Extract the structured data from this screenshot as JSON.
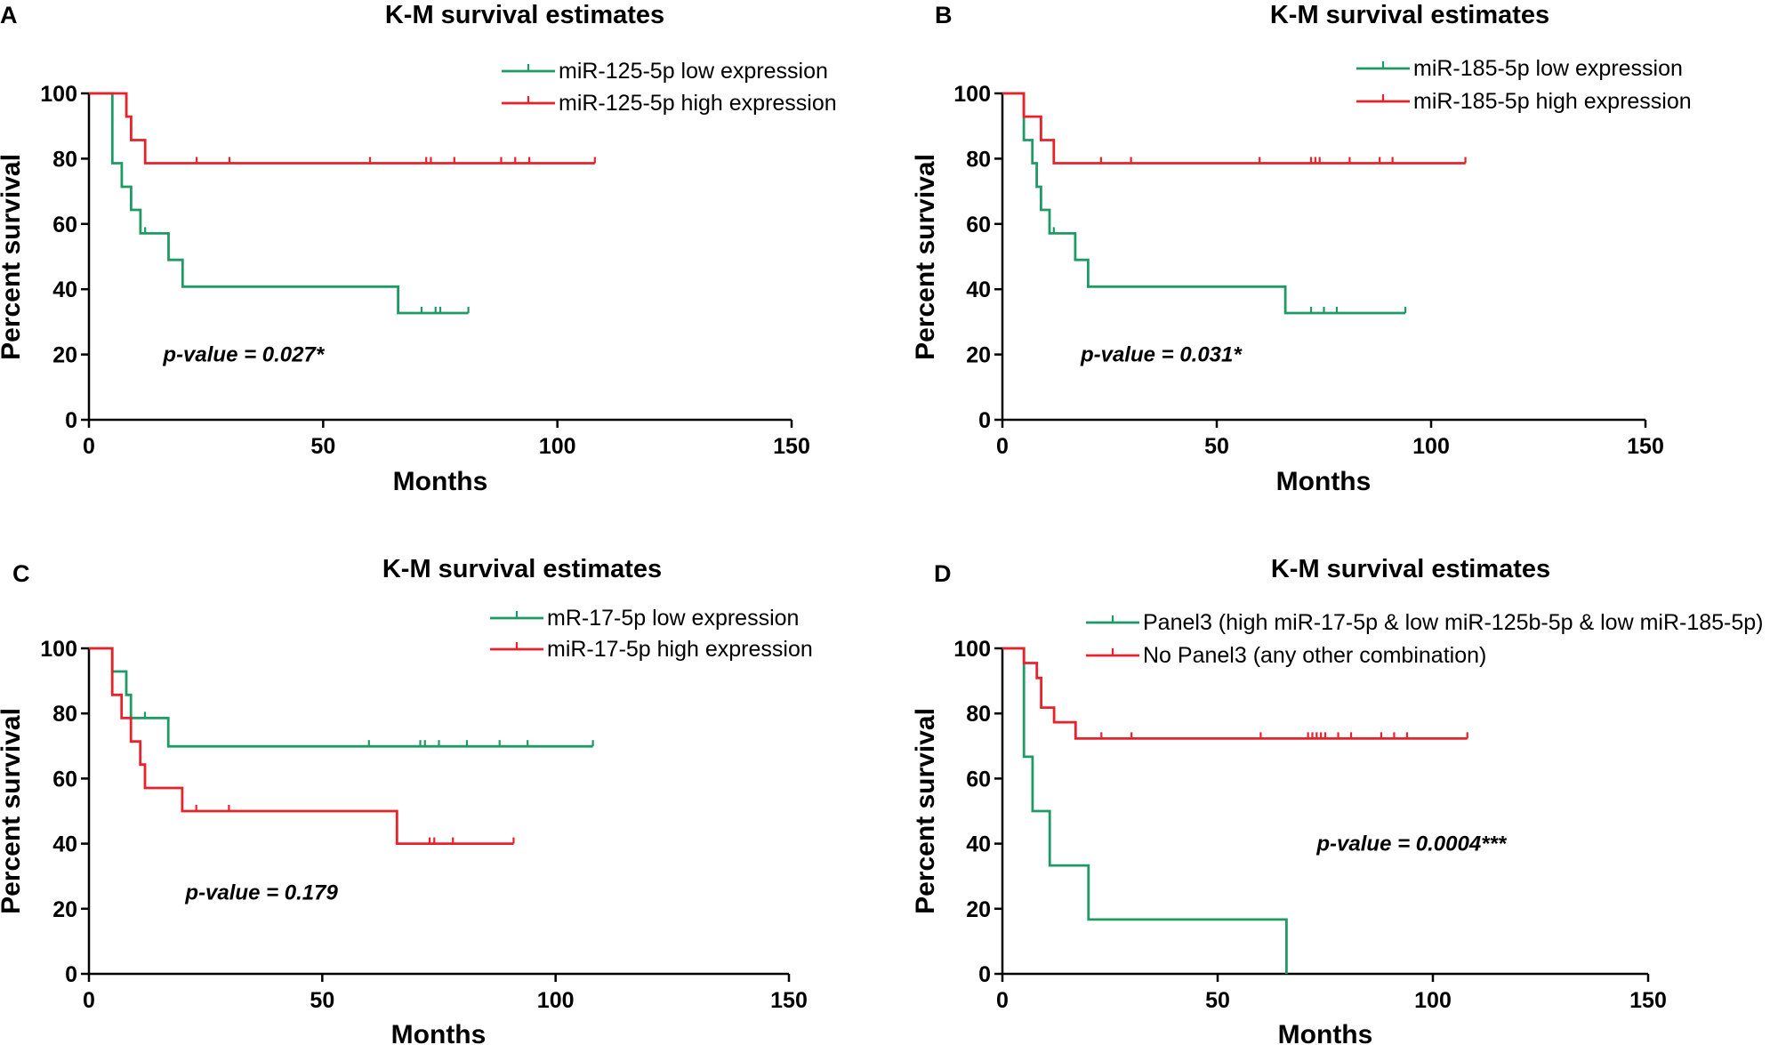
{
  "figure": {
    "background": "#ffffff"
  },
  "chart_data": [
    {
      "panel": "A",
      "type": "line",
      "subtype": "kaplan-meier",
      "title": "K-M survival estimates",
      "xlabel": "Months",
      "ylabel": "Percent survival",
      "xlim": [
        0,
        150
      ],
      "ylim": [
        0,
        100
      ],
      "xticks": [
        0,
        50,
        100,
        150
      ],
      "yticks": [
        0,
        20,
        40,
        60,
        80,
        100
      ],
      "annotation": "p-value = 0.027*",
      "annotation_pos": [
        33,
        20
      ],
      "series": [
        {
          "name": "miR-125-5p low expression",
          "color": "#1f9a64",
          "steps": [
            [
              0,
              100
            ],
            [
              5,
              100
            ],
            [
              5,
              78.6
            ],
            [
              7,
              78.6
            ],
            [
              7,
              71.4
            ],
            [
              9,
              71.4
            ],
            [
              9,
              64.3
            ],
            [
              11,
              64.3
            ],
            [
              11,
              57.1
            ],
            [
              17,
              57.1
            ],
            [
              17,
              49
            ],
            [
              20,
              49
            ],
            [
              20,
              40.8
            ],
            [
              66,
              40.8
            ],
            [
              66,
              32.7
            ],
            [
              81,
              32.7
            ]
          ],
          "censored": [
            [
              12,
              57.1
            ],
            [
              71,
              32.7
            ],
            [
              74,
              32.7
            ],
            [
              75,
              32.7
            ],
            [
              81,
              32.7
            ]
          ]
        },
        {
          "name": "miR-125-5p high expression",
          "color": "#e8212a",
          "steps": [
            [
              0,
              100
            ],
            [
              8,
              100
            ],
            [
              8,
              92.9
            ],
            [
              9,
              92.9
            ],
            [
              9,
              85.7
            ],
            [
              12,
              85.7
            ],
            [
              12,
              78.6
            ],
            [
              108,
              78.6
            ]
          ],
          "censored": [
            [
              23,
              78.6
            ],
            [
              30,
              78.6
            ],
            [
              60,
              78.6
            ],
            [
              72,
              78.6
            ],
            [
              73,
              78.6
            ],
            [
              78,
              78.6
            ],
            [
              88,
              78.6
            ],
            [
              91,
              78.6
            ],
            [
              94,
              78.6
            ],
            [
              108,
              78.6
            ]
          ]
        }
      ]
    },
    {
      "panel": "B",
      "type": "line",
      "subtype": "kaplan-meier",
      "title": "K-M survival estimates",
      "xlabel": "Months",
      "ylabel": "Percent survival",
      "xlim": [
        0,
        150
      ],
      "ylim": [
        0,
        100
      ],
      "xticks": [
        0,
        50,
        100,
        150
      ],
      "yticks": [
        0,
        20,
        40,
        60,
        80,
        100
      ],
      "annotation": "p-value = 0.031*",
      "annotation_pos": [
        37,
        20
      ],
      "series": [
        {
          "name": "miR-185-5p low expression",
          "color": "#1f9a64",
          "steps": [
            [
              0,
              100
            ],
            [
              5,
              100
            ],
            [
              5,
              85.7
            ],
            [
              7,
              85.7
            ],
            [
              7,
              78.6
            ],
            [
              8,
              78.6
            ],
            [
              8,
              71.4
            ],
            [
              9,
              71.4
            ],
            [
              9,
              64.3
            ],
            [
              11,
              64.3
            ],
            [
              11,
              57.1
            ],
            [
              17,
              57.1
            ],
            [
              17,
              49
            ],
            [
              20,
              49
            ],
            [
              20,
              40.8
            ],
            [
              66,
              40.8
            ],
            [
              66,
              32.7
            ],
            [
              94,
              32.7
            ]
          ],
          "censored": [
            [
              12,
              57.1
            ],
            [
              72,
              32.7
            ],
            [
              75,
              32.7
            ],
            [
              78,
              32.7
            ],
            [
              94,
              32.7
            ]
          ]
        },
        {
          "name": "miR-185-5p high expression",
          "color": "#e8212a",
          "steps": [
            [
              0,
              100
            ],
            [
              5,
              100
            ],
            [
              5,
              92.9
            ],
            [
              9,
              92.9
            ],
            [
              9,
              85.7
            ],
            [
              12,
              85.7
            ],
            [
              12,
              78.6
            ],
            [
              108,
              78.6
            ]
          ],
          "censored": [
            [
              23,
              78.6
            ],
            [
              30,
              78.6
            ],
            [
              60,
              78.6
            ],
            [
              72,
              78.6
            ],
            [
              73,
              78.6
            ],
            [
              74,
              78.6
            ],
            [
              81,
              78.6
            ],
            [
              88,
              78.6
            ],
            [
              91,
              78.6
            ],
            [
              108,
              78.6
            ]
          ]
        }
      ]
    },
    {
      "panel": "C",
      "type": "line",
      "subtype": "kaplan-meier",
      "title": "K-M survival estimates",
      "xlabel": "Months",
      "ylabel": "Percent survival",
      "xlim": [
        0,
        150
      ],
      "ylim": [
        0,
        100
      ],
      "xticks": [
        0,
        50,
        100,
        150
      ],
      "yticks": [
        0,
        20,
        40,
        60,
        80,
        100
      ],
      "annotation": "p-value = 0.179",
      "annotation_pos": [
        37,
        25
      ],
      "series": [
        {
          "name": "mR-17-5p low expression",
          "color": "#1f9a64",
          "steps": [
            [
              0,
              100
            ],
            [
              5,
              100
            ],
            [
              5,
              92.9
            ],
            [
              8,
              92.9
            ],
            [
              8,
              85.7
            ],
            [
              9,
              85.7
            ],
            [
              9,
              78.6
            ],
            [
              17,
              78.6
            ],
            [
              17,
              69.9
            ],
            [
              108,
              69.9
            ]
          ],
          "censored": [
            [
              12,
              78.6
            ],
            [
              60,
              69.9
            ],
            [
              71,
              69.9
            ],
            [
              72,
              69.9
            ],
            [
              75,
              69.9
            ],
            [
              81,
              69.9
            ],
            [
              88,
              69.9
            ],
            [
              94,
              69.9
            ],
            [
              108,
              69.9
            ]
          ]
        },
        {
          "name": "miR-17-5p high expression",
          "color": "#e8212a",
          "steps": [
            [
              0,
              100
            ],
            [
              5,
              100
            ],
            [
              5,
              85.7
            ],
            [
              7,
              85.7
            ],
            [
              7,
              78.6
            ],
            [
              9,
              78.6
            ],
            [
              9,
              71.4
            ],
            [
              11,
              71.4
            ],
            [
              11,
              64.3
            ],
            [
              12,
              64.3
            ],
            [
              12,
              57.1
            ],
            [
              20,
              57.1
            ],
            [
              20,
              50
            ],
            [
              66,
              50
            ],
            [
              66,
              40
            ],
            [
              91,
              40
            ]
          ],
          "censored": [
            [
              23,
              50
            ],
            [
              30,
              50
            ],
            [
              73,
              40
            ],
            [
              74,
              40
            ],
            [
              78,
              40
            ],
            [
              91,
              40
            ]
          ]
        }
      ]
    },
    {
      "panel": "D",
      "type": "line",
      "subtype": "kaplan-meier",
      "title": "K-M survival estimates",
      "xlabel": "Months",
      "ylabel": "Percent survival",
      "xlim": [
        0,
        150
      ],
      "ylim": [
        0,
        100
      ],
      "xticks": [
        0,
        50,
        100,
        150
      ],
      "yticks": [
        0,
        20,
        40,
        60,
        80,
        100
      ],
      "annotation": "p-value = 0.0004***",
      "annotation_pos": [
        95,
        40
      ],
      "series": [
        {
          "name": "Panel3 (high miR-17-5p & low miR-125b-5p & low miR-185-5p)",
          "color": "#1f9a64",
          "steps": [
            [
              0,
              100
            ],
            [
              5,
              100
            ],
            [
              5,
              66.7
            ],
            [
              7,
              66.7
            ],
            [
              7,
              50
            ],
            [
              11,
              50
            ],
            [
              11,
              33.3
            ],
            [
              20,
              33.3
            ],
            [
              20,
              16.7
            ],
            [
              66,
              16.7
            ],
            [
              66,
              0
            ]
          ],
          "censored": []
        },
        {
          "name": "No Panel3 (any other combination)",
          "color": "#e8212a",
          "steps": [
            [
              0,
              100
            ],
            [
              5,
              100
            ],
            [
              5,
              95.5
            ],
            [
              8,
              95.5
            ],
            [
              8,
              90.9
            ],
            [
              9,
              90.9
            ],
            [
              9,
              81.8
            ],
            [
              12,
              81.8
            ],
            [
              12,
              77.3
            ],
            [
              17,
              77.3
            ],
            [
              17,
              72.3
            ],
            [
              108,
              72.3
            ]
          ],
          "censored": [
            [
              23,
              72.3
            ],
            [
              30,
              72.3
            ],
            [
              60,
              72.3
            ],
            [
              71,
              72.3
            ],
            [
              72,
              72.3
            ],
            [
              73,
              72.3
            ],
            [
              74,
              72.3
            ],
            [
              75,
              72.3
            ],
            [
              78,
              72.3
            ],
            [
              81,
              72.3
            ],
            [
              88,
              72.3
            ],
            [
              91,
              72.3
            ],
            [
              94,
              72.3
            ],
            [
              108,
              72.3
            ]
          ]
        }
      ]
    }
  ]
}
